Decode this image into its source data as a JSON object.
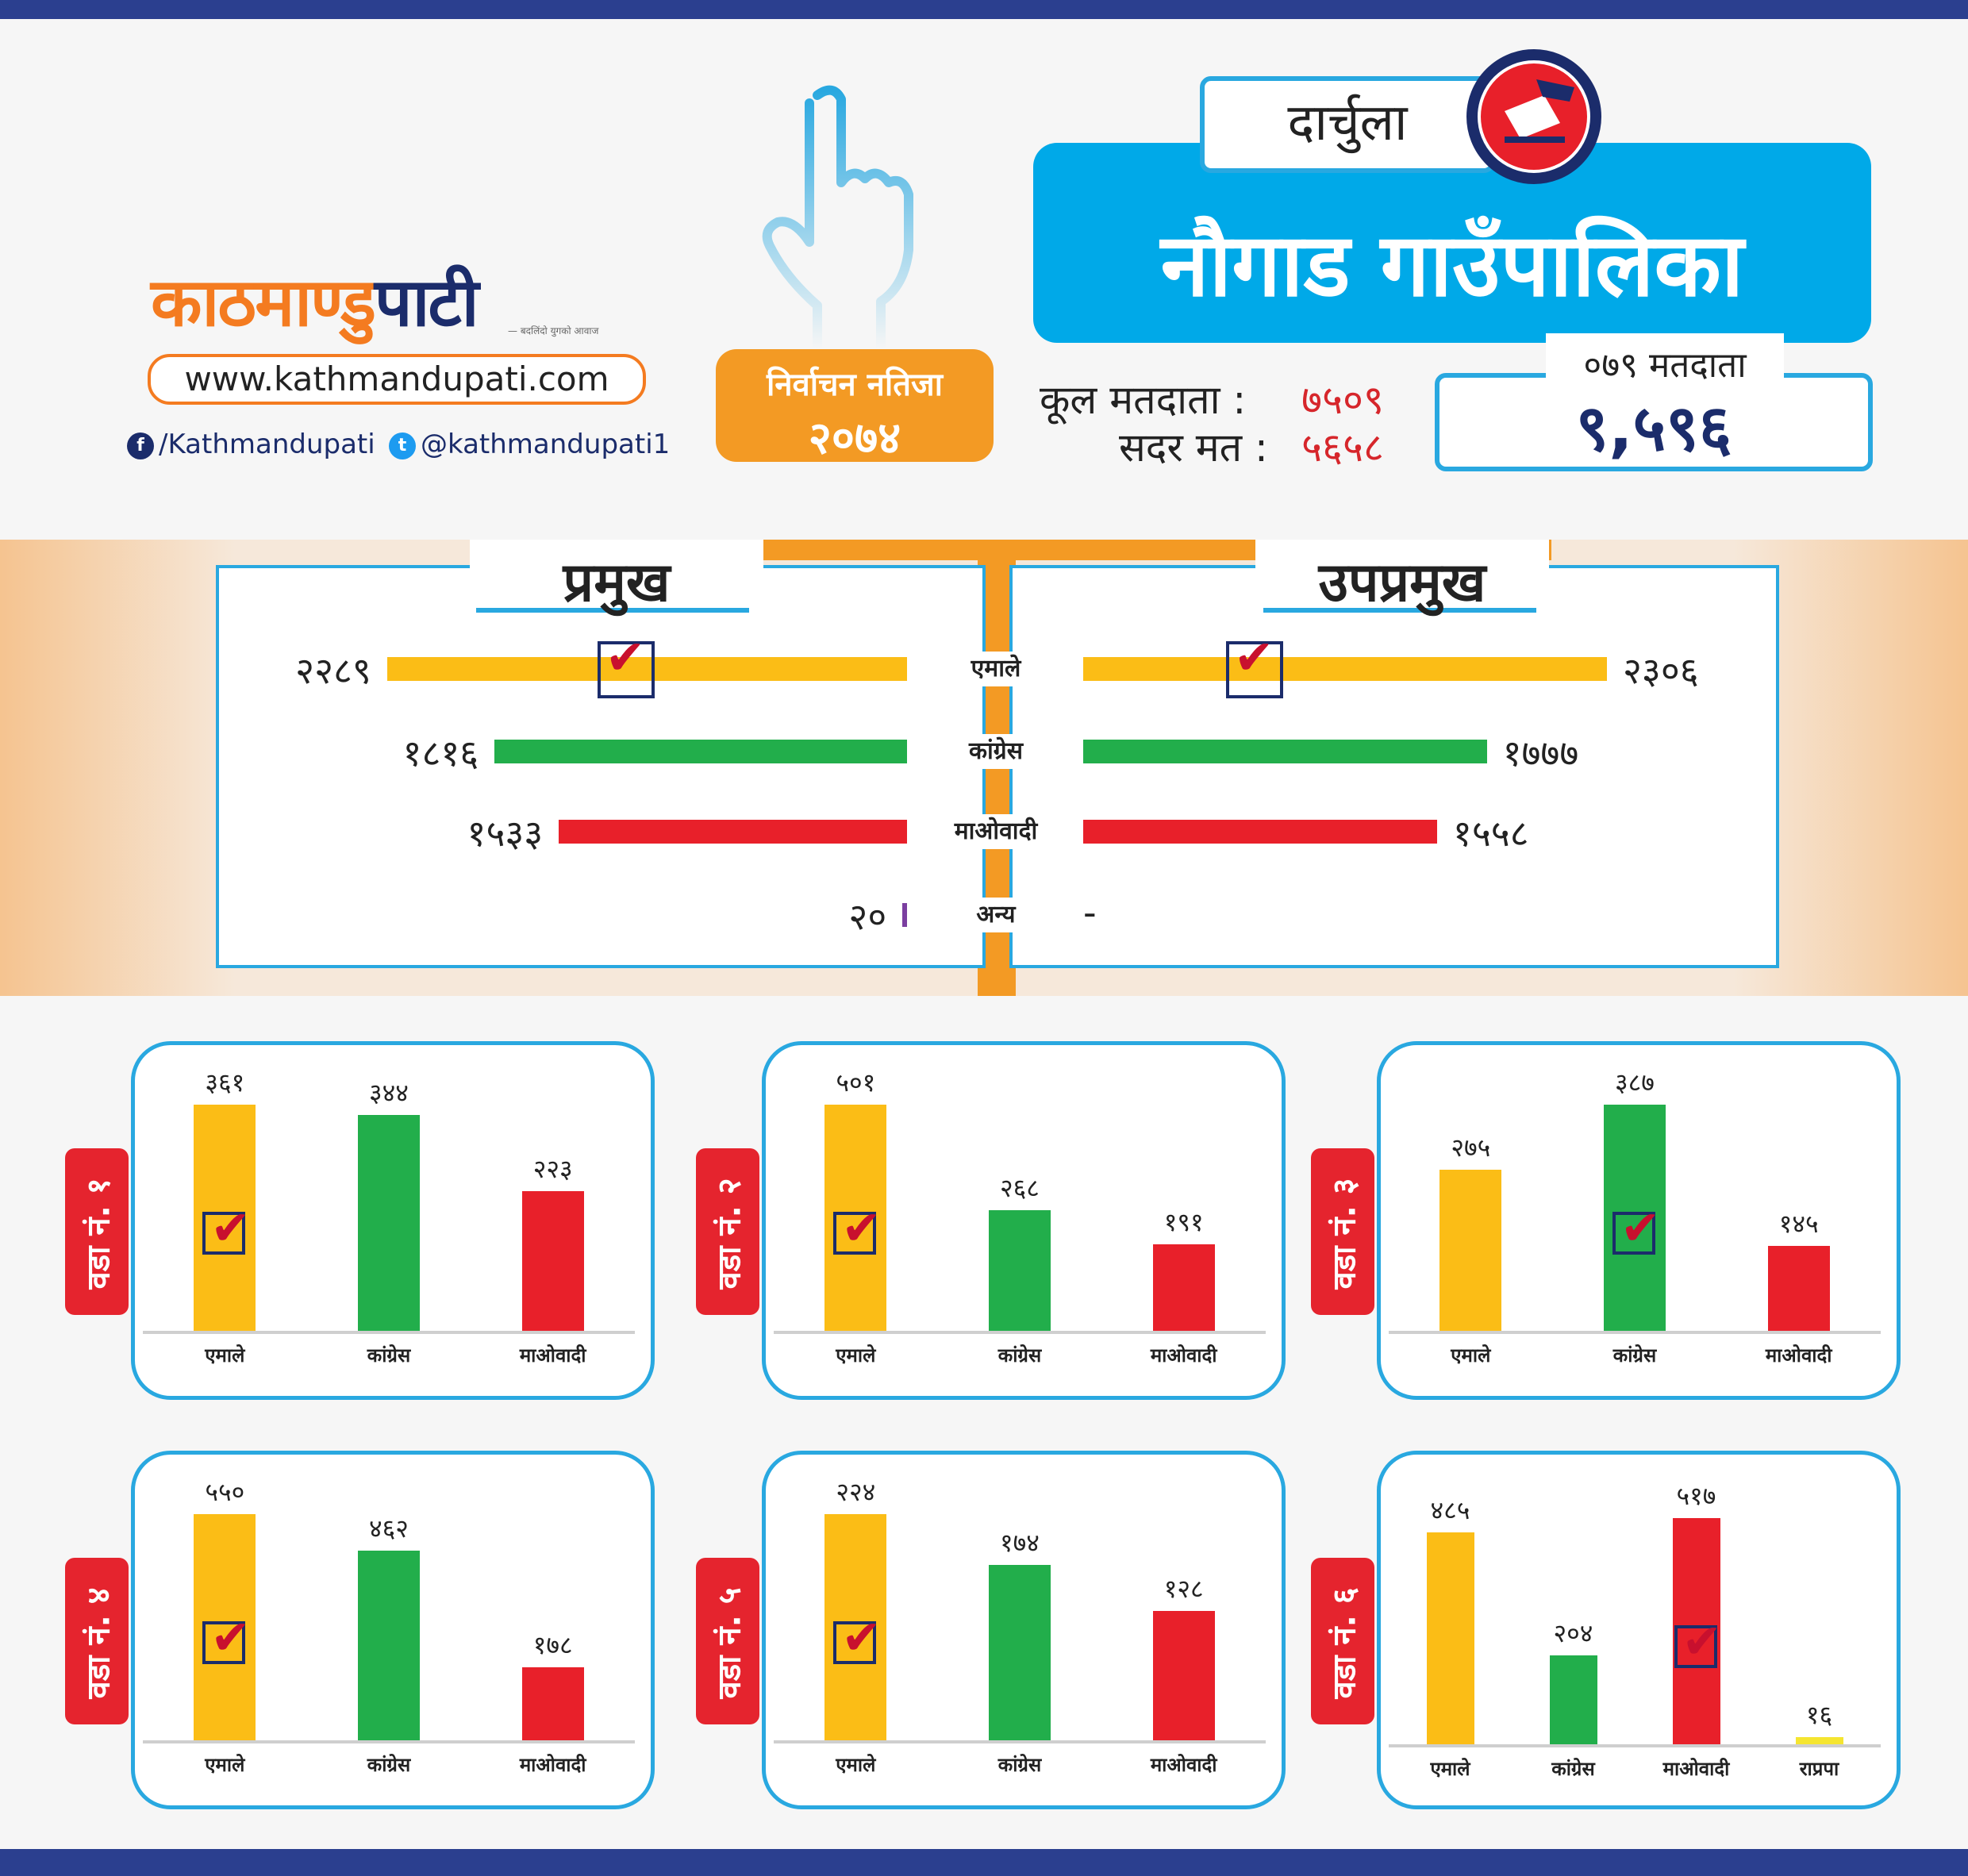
{
  "header": {
    "logo_text_a": "काठमाण्डु",
    "logo_text_b": "पाटी",
    "logo_tagline": "— बदलिंदो युगको आवाज",
    "website": "www.kathmandupati.com",
    "facebook": "/Kathmandupati",
    "twitter": "@kathmandupati1",
    "result_line1": "निर्वाचन नतिजा",
    "result_line2": "२०७४",
    "district": "दार्चुला",
    "municipality": "नौगाड गाउँपालिका",
    "total_voters_label": "कूल मतदाता :",
    "total_voters": "७५०९",
    "valid_votes_label": "सदर मत :",
    "valid_votes": "५६५८",
    "voters_079_label": "०७९ मतदाता",
    "voters_079": "९,५९६"
  },
  "colors": {
    "uml": "#fbbd16",
    "congress": "#22ae4b",
    "maoist": "#e8202a",
    "other": "#7b3fa0",
    "rpp": "#f5e530",
    "accent": "#29a8e0",
    "orange": "#f39a24",
    "navy": "#1b2c6b"
  },
  "chart_data": [
    {
      "type": "bar",
      "title": "प्रमुख",
      "categories": [
        "एमाले",
        "कांग्रेस",
        "माओवादी",
        "अन्य"
      ],
      "values": [
        2289,
        1816,
        1533,
        20
      ],
      "labels": [
        "२२८९",
        "१८१६",
        "१५३३",
        "२०"
      ],
      "winner": "एमाले"
    },
    {
      "type": "bar",
      "title": "उपप्रमुख",
      "categories": [
        "एमाले",
        "कांग्रेस",
        "माओवादी",
        "अन्य"
      ],
      "values": [
        2306,
        1777,
        1558,
        null
      ],
      "labels": [
        "२३०६",
        "१७७७",
        "१५५८",
        "-"
      ],
      "winner": "एमाले"
    },
    {
      "type": "bar",
      "title": "वडा नं. १",
      "categories": [
        "एमाले",
        "कांग्रेस",
        "माओवादी"
      ],
      "values": [
        361,
        344,
        223
      ],
      "labels": [
        "३६१",
        "३४४",
        "२२३"
      ],
      "winner": "एमाले"
    },
    {
      "type": "bar",
      "title": "वडा नं. २",
      "categories": [
        "एमाले",
        "कांग्रेस",
        "माओवादी"
      ],
      "values": [
        501,
        268,
        191
      ],
      "labels": [
        "५०१",
        "२६८",
        "१९१"
      ],
      "winner": "एमाले"
    },
    {
      "type": "bar",
      "title": "वडा नं. ३",
      "categories": [
        "एमाले",
        "कांग्रेस",
        "माओवादी"
      ],
      "values": [
        275,
        387,
        145
      ],
      "labels": [
        "२७५",
        "३८७",
        "१४५"
      ],
      "winner": "कांग्रेस"
    },
    {
      "type": "bar",
      "title": "वडा नं. ४",
      "categories": [
        "एमाले",
        "कांग्रेस",
        "माओवादी"
      ],
      "values": [
        550,
        462,
        178
      ],
      "labels": [
        "५५०",
        "४६२",
        "१७८"
      ],
      "winner": "एमाले"
    },
    {
      "type": "bar",
      "title": "वडा नं. ५",
      "categories": [
        "एमाले",
        "कांग्रेस",
        "माओवादी"
      ],
      "values": [
        224,
        174,
        128
      ],
      "labels": [
        "२२४",
        "१७४",
        "१२८"
      ],
      "winner": "एमाले"
    },
    {
      "type": "bar",
      "title": "वडा नं. ६",
      "categories": [
        "एमाले",
        "कांग्रेस",
        "माओवादी",
        "राप्रपा"
      ],
      "values": [
        485,
        204,
        517,
        16
      ],
      "labels": [
        "४८५",
        "२०४",
        "५१७",
        "१६"
      ],
      "winner": "माओवादी"
    }
  ]
}
